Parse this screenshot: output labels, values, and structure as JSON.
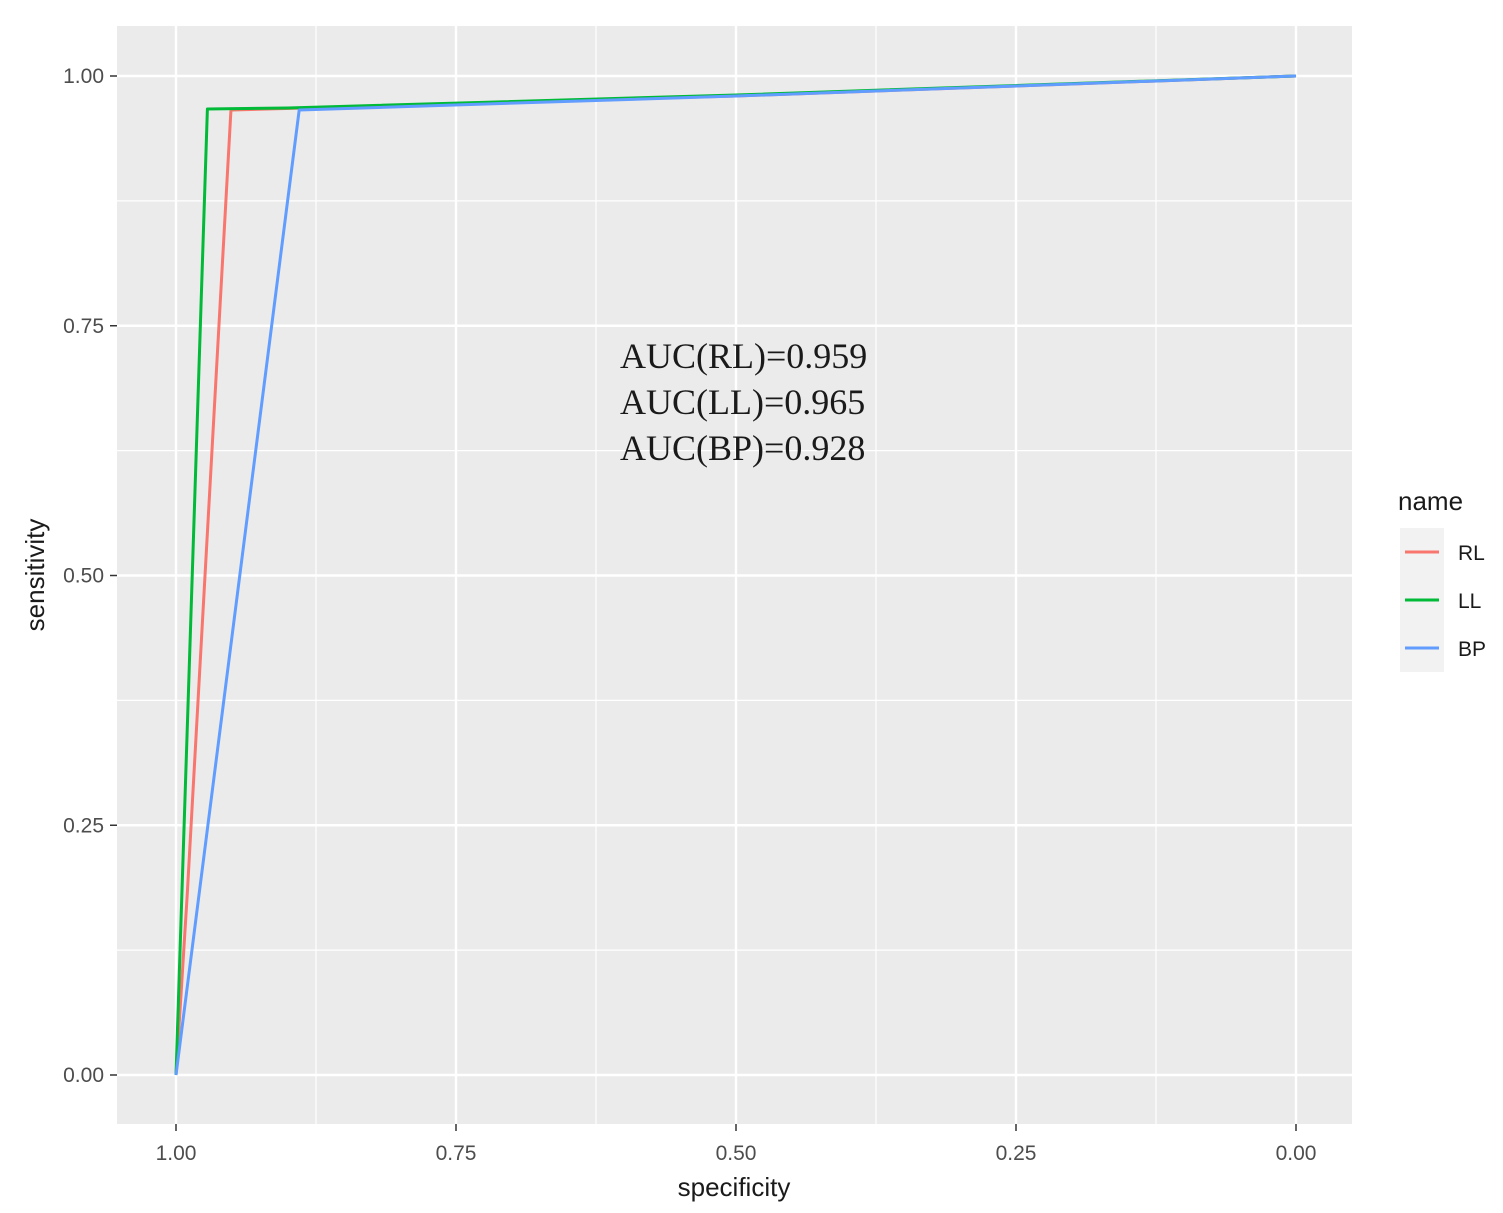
{
  "chart_data": {
    "type": "line",
    "xlabel": "specificity",
    "ylabel": "sensitivity",
    "xlim": [
      1.0,
      0.0
    ],
    "x_reversed": true,
    "ylim": [
      0.0,
      1.0
    ],
    "x_ticks": [
      "1.00",
      "0.75",
      "0.50",
      "0.25",
      "0.00"
    ],
    "y_ticks": [
      "0.00",
      "0.25",
      "0.50",
      "0.75",
      "1.00"
    ],
    "grid": true,
    "background": "#ebebeb",
    "legend": {
      "title": "name",
      "position": "right"
    },
    "annotations": [
      "AUC(RL)=0.959",
      "AUC(LL)=0.965",
      "AUC(BP)=0.928"
    ],
    "series": [
      {
        "name": "RL",
        "color": "#f8766d",
        "points": [
          [
            1.0,
            0.0
          ],
          [
            0.99,
            0.18
          ],
          [
            0.951,
            0.965
          ],
          [
            0.95,
            0.966
          ],
          [
            0.5,
            0.98
          ],
          [
            0.0,
            1.0
          ]
        ]
      },
      {
        "name": "LL",
        "color": "#00ba38",
        "points": [
          [
            1.0,
            0.0
          ],
          [
            0.972,
            0.967
          ],
          [
            0.9,
            0.968
          ],
          [
            0.5,
            0.981
          ],
          [
            0.0,
            1.0
          ]
        ]
      },
      {
        "name": "BP",
        "color": "#619cff",
        "points": [
          [
            1.0,
            0.0
          ],
          [
            0.89,
            0.966
          ],
          [
            0.5,
            0.98
          ],
          [
            0.0,
            1.0
          ]
        ]
      }
    ]
  }
}
